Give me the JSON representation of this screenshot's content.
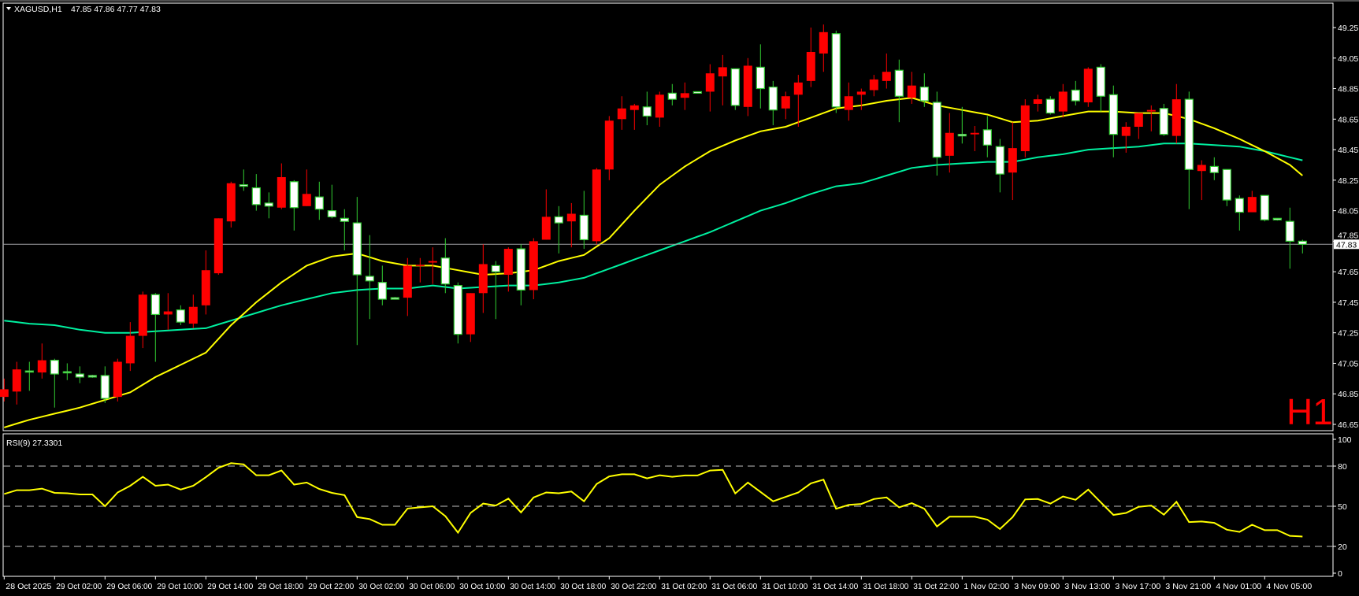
{
  "header": {
    "symbol": "XAGUSD,H1",
    "ohlc": "47.85 47.86 47.77 47.83",
    "menu_icon": "triangle-down-icon"
  },
  "timeframe_watermark": "H1",
  "current_price_label": "47.83",
  "colors": {
    "background": "#000000",
    "bull_body": "#ff0000",
    "bear_body": "#ffffff",
    "bear_outline": "#32cd32",
    "ma_fast": "#ffff00",
    "ma_slow": "#00f0a0",
    "rsi_line": "#ffff00",
    "grid_level": "#c0c0c0",
    "price_line": "#a0a0a4",
    "watermark": "#ff0000"
  },
  "chart_data": [
    {
      "type": "candlestick",
      "title": "XAGUSD,H1",
      "ylim": [
        46.65,
        49.25
      ],
      "y_ticks": [
        "49.25",
        "49.05",
        "48.85",
        "48.65",
        "48.45",
        "48.25",
        "48.05",
        "47.85",
        "47.65",
        "47.45",
        "47.25",
        "47.05",
        "46.85",
        "46.65"
      ],
      "x_tick_labels": [
        "28 Oct 2025",
        "29 Oct 02:00",
        "29 Oct 06:00",
        "29 Oct 10:00",
        "29 Oct 14:00",
        "29 Oct 18:00",
        "29 Oct 22:00",
        "30 Oct 02:00",
        "30 Oct 06:00",
        "30 Oct 10:00",
        "30 Oct 14:00",
        "30 Oct 18:00",
        "30 Oct 22:00",
        "31 Oct 02:00",
        "31 Oct 06:00",
        "31 Oct 10:00",
        "31 Oct 14:00",
        "31 Oct 18:00",
        "31 Oct 22:00",
        "1 Nov 02:00",
        "3 Nov 09:00",
        "3 Nov 13:00",
        "3 Nov 17:00",
        "3 Nov 21:00",
        "4 Nov 01:00",
        "4 Nov 05:00"
      ],
      "bars_per_x_tick": 4,
      "ohlc": [
        [
          46.83,
          46.95,
          46.8,
          46.88
        ],
        [
          46.865,
          47.06,
          46.78,
          47.01
        ],
        [
          47.0,
          47.06,
          46.87,
          47.0
        ],
        [
          46.99,
          47.18,
          46.95,
          47.07
        ],
        [
          47.07,
          47.08,
          46.76,
          46.98
        ],
        [
          46.995,
          47.05,
          46.94,
          46.99
        ],
        [
          46.98,
          47.03,
          46.92,
          46.96
        ],
        [
          46.97,
          46.975,
          46.955,
          46.96
        ],
        [
          46.97,
          47.03,
          46.79,
          46.82
        ],
        [
          46.83,
          47.08,
          46.8,
          47.06
        ],
        [
          47.05,
          47.32,
          47.0,
          47.23
        ],
        [
          47.23,
          47.52,
          47.15,
          47.5
        ],
        [
          47.5,
          47.51,
          47.06,
          47.37
        ],
        [
          47.37,
          47.51,
          47.27,
          47.39
        ],
        [
          47.4,
          47.43,
          47.3,
          47.32
        ],
        [
          47.31,
          47.5,
          47.28,
          47.42
        ],
        [
          47.43,
          47.79,
          47.37,
          47.66
        ],
        [
          47.64,
          48.0,
          47.63,
          48.0
        ],
        [
          47.98,
          48.24,
          47.94,
          48.23
        ],
        [
          48.22,
          48.32,
          48.18,
          48.21
        ],
        [
          48.2,
          48.29,
          48.05,
          48.09
        ],
        [
          48.1,
          48.17,
          48.0,
          48.08
        ],
        [
          48.07,
          48.36,
          48.06,
          48.27
        ],
        [
          48.24,
          48.25,
          47.92,
          48.07
        ],
        [
          48.08,
          48.32,
          48.08,
          48.16
        ],
        [
          48.14,
          48.24,
          47.99,
          48.06
        ],
        [
          48.05,
          48.22,
          48.0,
          48.01
        ],
        [
          48.0,
          48.06,
          47.79,
          47.98
        ],
        [
          47.97,
          48.14,
          47.17,
          47.63
        ],
        [
          47.62,
          47.89,
          47.34,
          47.59
        ],
        [
          47.58,
          47.69,
          47.43,
          47.47
        ],
        [
          47.48,
          47.485,
          47.47,
          47.47
        ],
        [
          47.48,
          47.74,
          47.36,
          47.69
        ],
        [
          47.69,
          47.74,
          47.58,
          47.695
        ],
        [
          47.71,
          47.81,
          47.57,
          47.72
        ],
        [
          47.74,
          47.87,
          47.51,
          47.57
        ],
        [
          47.56,
          47.58,
          47.18,
          47.24
        ],
        [
          47.24,
          47.51,
          47.19,
          47.51
        ],
        [
          47.51,
          47.83,
          47.38,
          47.7
        ],
        [
          47.69,
          47.72,
          47.34,
          47.65
        ],
        [
          47.63,
          47.81,
          47.52,
          47.8
        ],
        [
          47.8,
          47.83,
          47.43,
          47.53
        ],
        [
          47.53,
          47.87,
          47.47,
          47.85
        ],
        [
          47.86,
          48.19,
          47.86,
          48.01
        ],
        [
          48.01,
          48.08,
          47.77,
          47.97
        ],
        [
          47.98,
          48.1,
          47.81,
          48.03
        ],
        [
          48.02,
          48.18,
          47.8,
          47.86
        ],
        [
          47.85,
          48.33,
          47.83,
          48.32
        ],
        [
          48.32,
          48.67,
          48.25,
          48.64
        ],
        [
          48.65,
          48.8,
          48.58,
          48.72
        ],
        [
          48.71,
          48.75,
          48.58,
          48.74
        ],
        [
          48.73,
          48.83,
          48.61,
          48.67
        ],
        [
          48.66,
          48.83,
          48.6,
          48.81
        ],
        [
          48.82,
          48.88,
          48.74,
          48.78
        ],
        [
          48.79,
          48.89,
          48.71,
          48.82
        ],
        [
          48.83,
          48.83,
          48.82,
          48.82
        ],
        [
          48.83,
          49.01,
          48.7,
          48.95
        ],
        [
          48.93,
          49.07,
          48.74,
          48.99
        ],
        [
          48.98,
          48.98,
          48.71,
          48.74
        ],
        [
          48.73,
          49.05,
          48.67,
          49.0
        ],
        [
          48.99,
          49.14,
          48.72,
          48.85
        ],
        [
          48.86,
          48.9,
          48.61,
          48.71
        ],
        [
          48.72,
          48.83,
          48.65,
          48.8
        ],
        [
          48.81,
          48.94,
          48.6,
          48.89
        ],
        [
          48.9,
          49.25,
          48.86,
          49.09
        ],
        [
          49.08,
          49.27,
          48.96,
          49.22
        ],
        [
          49.21,
          49.23,
          48.69,
          48.73
        ],
        [
          48.71,
          48.89,
          48.64,
          48.8
        ],
        [
          48.81,
          48.85,
          48.71,
          48.83
        ],
        [
          48.84,
          48.94,
          48.8,
          48.91
        ],
        [
          48.9,
          49.08,
          48.85,
          48.96
        ],
        [
          48.97,
          49.04,
          48.63,
          48.8
        ],
        [
          48.79,
          48.96,
          48.75,
          48.87
        ],
        [
          48.86,
          48.95,
          48.73,
          48.77
        ],
        [
          48.76,
          48.83,
          48.28,
          48.4
        ],
        [
          48.41,
          48.69,
          48.3,
          48.56
        ],
        [
          48.55,
          48.73,
          48.49,
          48.54
        ],
        [
          48.55,
          48.605,
          48.44,
          48.56
        ],
        [
          48.58,
          48.67,
          48.4,
          48.48
        ],
        [
          48.47,
          48.52,
          48.17,
          48.29
        ],
        [
          48.3,
          48.63,
          48.12,
          48.46
        ],
        [
          48.44,
          48.78,
          48.4,
          48.74
        ],
        [
          48.75,
          48.81,
          48.7,
          48.78
        ],
        [
          48.78,
          48.8,
          48.68,
          48.69
        ],
        [
          48.7,
          48.88,
          48.66,
          48.83
        ],
        [
          48.84,
          48.9,
          48.74,
          48.77
        ],
        [
          48.76,
          48.99,
          48.73,
          48.98
        ],
        [
          48.99,
          49.01,
          48.7,
          48.8
        ],
        [
          48.81,
          48.87,
          48.4,
          48.55
        ],
        [
          48.54,
          48.63,
          48.43,
          48.6
        ],
        [
          48.6,
          48.69,
          48.52,
          48.69
        ],
        [
          48.7,
          48.74,
          48.57,
          48.71
        ],
        [
          48.72,
          48.75,
          48.54,
          48.55
        ],
        [
          48.54,
          48.88,
          48.49,
          48.78
        ],
        [
          48.78,
          48.83,
          48.06,
          48.32
        ],
        [
          48.31,
          48.38,
          48.12,
          48.35
        ],
        [
          48.34,
          48.4,
          48.25,
          48.3
        ],
        [
          48.32,
          48.32,
          48.08,
          48.12
        ],
        [
          48.13,
          48.15,
          47.92,
          48.04
        ],
        [
          48.04,
          48.18,
          48.04,
          48.14
        ],
        [
          48.15,
          48.15,
          47.98,
          47.99
        ],
        [
          48.0,
          48.0,
          47.985,
          47.99
        ],
        [
          47.98,
          48.07,
          47.67,
          47.85
        ],
        [
          47.85,
          47.86,
          47.77,
          47.83
        ]
      ],
      "current_price": 47.83,
      "ma_fast": [
        46.63,
        46.655,
        46.68,
        46.7,
        46.72,
        46.74,
        46.76,
        46.785,
        46.81,
        46.835,
        46.86,
        46.91,
        46.96,
        47.0,
        47.04,
        47.08,
        47.12,
        47.21,
        47.3,
        47.375,
        47.45,
        47.515,
        47.58,
        47.635,
        47.69,
        47.72,
        47.75,
        47.76,
        47.77,
        47.745,
        47.72,
        47.705,
        47.69,
        47.69,
        47.69,
        47.675,
        47.66,
        47.645,
        47.63,
        47.635,
        47.64,
        47.65,
        47.66,
        47.69,
        47.72,
        47.74,
        47.76,
        47.815,
        47.87,
        47.96,
        48.05,
        48.135,
        48.22,
        48.28,
        48.34,
        48.39,
        48.44,
        48.475,
        48.51,
        48.54,
        48.57,
        48.585,
        48.6,
        48.63,
        48.66,
        48.69,
        48.72,
        48.73,
        48.74,
        48.755,
        48.77,
        48.78,
        48.79,
        48.765,
        48.74,
        48.725,
        48.71,
        48.695,
        48.68,
        48.655,
        48.63,
        48.635,
        48.64,
        48.655,
        48.67,
        48.685,
        48.7,
        48.7,
        48.7,
        48.695,
        48.69,
        48.69,
        48.69,
        48.67,
        48.65,
        48.62,
        48.59,
        48.555,
        48.52,
        48.48,
        48.44,
        48.395,
        48.35,
        48.28
      ],
      "ma_slow": [
        47.33,
        47.32,
        47.31,
        47.305,
        47.3,
        47.285,
        47.27,
        47.26,
        47.25,
        47.25,
        47.25,
        47.255,
        47.26,
        47.265,
        47.27,
        47.275,
        47.28,
        47.305,
        47.33,
        47.355,
        47.38,
        47.405,
        47.43,
        47.45,
        47.47,
        47.49,
        47.51,
        47.52,
        47.53,
        47.535,
        47.54,
        47.54,
        47.54,
        47.55,
        47.56,
        47.55,
        47.54,
        47.545,
        47.55,
        47.555,
        47.56,
        47.56,
        47.56,
        47.57,
        47.58,
        47.595,
        47.61,
        47.64,
        47.67,
        47.7,
        47.73,
        47.76,
        47.79,
        47.82,
        47.85,
        47.88,
        47.91,
        47.945,
        47.98,
        48.015,
        48.05,
        48.075,
        48.1,
        48.13,
        48.16,
        48.185,
        48.21,
        48.22,
        48.23,
        48.255,
        48.28,
        48.305,
        48.33,
        48.34,
        48.35,
        48.355,
        48.36,
        48.365,
        48.37,
        48.37,
        48.37,
        48.385,
        48.4,
        48.41,
        48.42,
        48.435,
        48.45,
        48.455,
        48.46,
        48.465,
        48.47,
        48.48,
        48.49,
        48.49,
        48.49,
        48.485,
        48.48,
        48.475,
        48.47,
        48.455,
        48.44,
        48.42,
        48.4,
        48.38
      ]
    },
    {
      "type": "line",
      "title": "RSI(9) 27.3301",
      "ylim": [
        0,
        100
      ],
      "y_ticks": [
        "100",
        "80",
        "50",
        "20",
        "0"
      ],
      "levels": [
        80,
        50,
        20
      ],
      "values": [
        59.2,
        62,
        62,
        63.2,
        60,
        59.7,
        58.8,
        58.8,
        50,
        60.3,
        65.3,
        72,
        65.3,
        66.2,
        62.5,
        65.3,
        71.7,
        78.7,
        82.2,
        81.3,
        73.2,
        73.2,
        76.7,
        66.2,
        67.7,
        62.9,
        60,
        58.3,
        41.9,
        40.4,
        36.2,
        36.2,
        48.3,
        49.2,
        50,
        42.6,
        30.3,
        45,
        52,
        50.5,
        55.7,
        45.4,
        56.6,
        60.3,
        59.7,
        61,
        53.7,
        66.6,
        72.3,
        73.9,
        73.9,
        70.8,
        73.2,
        72,
        73,
        73,
        76.7,
        77.2,
        59.6,
        67.7,
        60.7,
        53.7,
        57,
        60.3,
        67.1,
        69.9,
        48.1,
        51,
        51.7,
        55.4,
        56.6,
        49.2,
        52.3,
        48.1,
        34.9,
        42.2,
        42.2,
        42.2,
        40,
        33,
        41.9,
        55.1,
        55.4,
        52,
        57.3,
        54.8,
        62.5,
        52.9,
        43.5,
        45,
        49.6,
        50.5,
        43.7,
        53.3,
        38.2,
        38.6,
        37.6,
        32.5,
        30.8,
        36.2,
        32.1,
        32.1,
        27.9,
        27.33
      ]
    }
  ]
}
